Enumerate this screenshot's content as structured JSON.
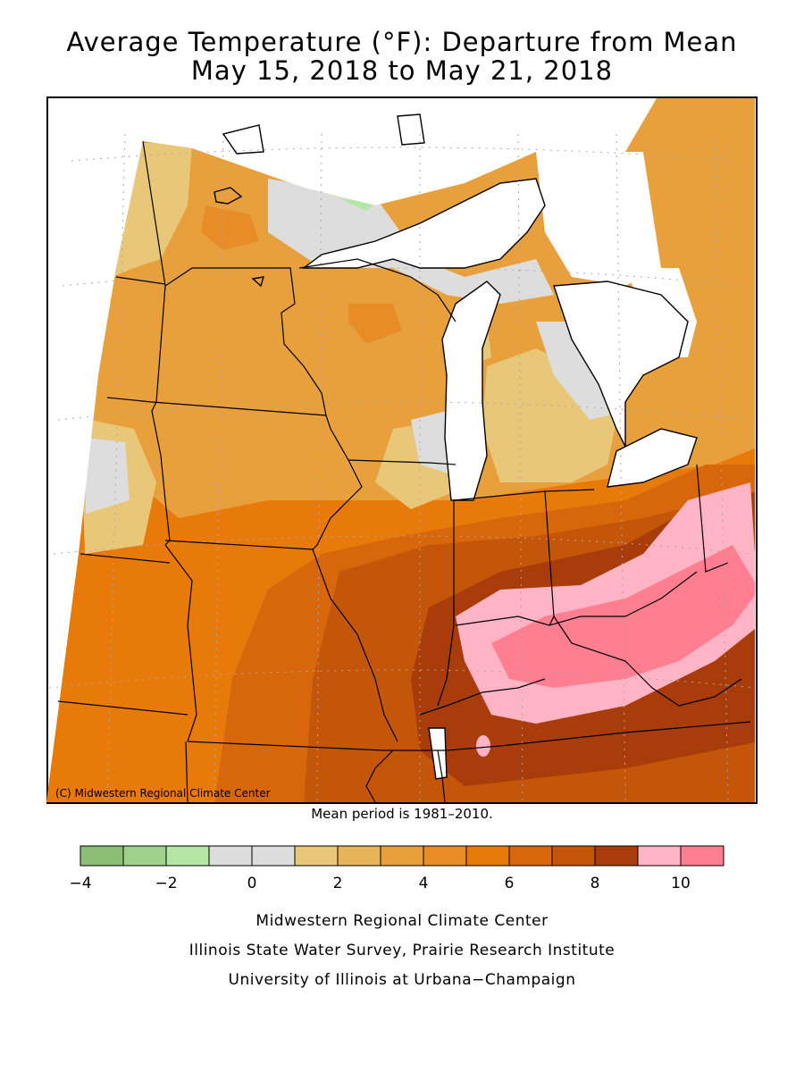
{
  "title_line1": "Average Temperature (°F): Departure from Mean",
  "title_line2": "May 15, 2018 to May 21, 2018",
  "copyright": "(C) Midwestern Regional Climate Center",
  "mean_period": "Mean period is 1981–2010.",
  "legend": {
    "colors": [
      "#8bbf76",
      "#9fd18d",
      "#b3e6a3",
      "#dddddd",
      "#dddddd",
      "#e8c878",
      "#e8b45a",
      "#e8a03c",
      "#e88c26",
      "#e87a0a",
      "#d8660a",
      "#c4560a",
      "#a83c0a",
      "#ffb4c6",
      "#ff7f91"
    ],
    "tick_labels": [
      "−4",
      "−2",
      "0",
      "2",
      "4",
      "6",
      "8",
      "10"
    ]
  },
  "credits": [
    "Midwestern Regional Climate Center",
    "Illinois State Water Survey, Prairie Research Institute",
    "University of Illinois at Urbana−Champaign"
  ]
}
